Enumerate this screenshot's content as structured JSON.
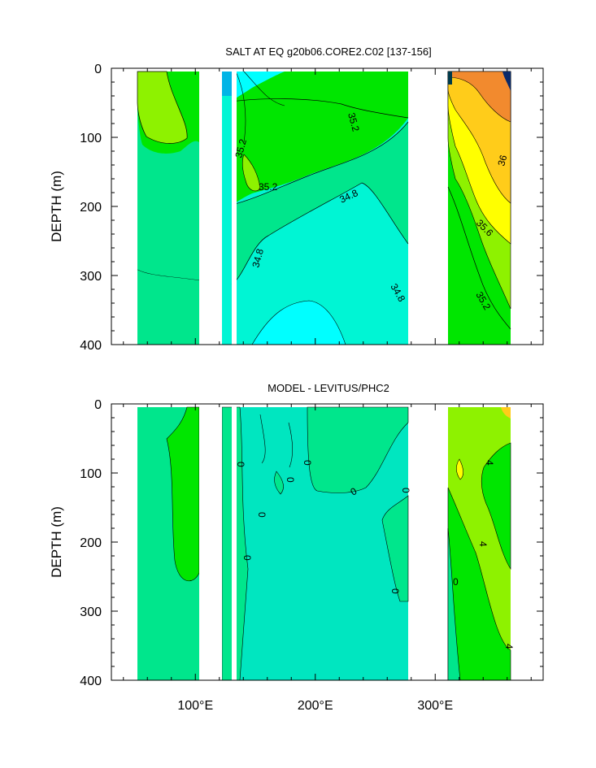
{
  "chart_data": [
    {
      "type": "contour",
      "title": "SALT AT EQ g20b06.CORE2.C02 [137-156]",
      "ylabel": "DEPTH (m)",
      "xlabel": "",
      "x_range": [
        30,
        390
      ],
      "y_range": [
        0,
        400
      ],
      "y_reversed": true,
      "y_ticks": [
        "0",
        "100",
        "200",
        "300",
        "400"
      ],
      "x_ticks": [
        "100°E",
        "200°E",
        "300°E"
      ],
      "contour_labels": [
        "35.2",
        "35.2",
        "35.2",
        "34.8",
        "34.8",
        "34.8",
        "36",
        "35.6",
        "35.2"
      ],
      "colors": {
        "fresh": "#00ffff",
        "low": "#00f5d4",
        "mid": "#00e68c",
        "mid_high": "#00e600",
        "high": "#8ef200",
        "salty": "#ffff00",
        "saltier": "#ffcc1a",
        "saltiest": "#f28a2e"
      }
    },
    {
      "type": "contour",
      "title": "MODEL - LEVITUS/PHC2",
      "ylabel": "DEPTH (m)",
      "xlabel": "",
      "x_range": [
        30,
        390
      ],
      "y_range": [
        0,
        400
      ],
      "y_reversed": true,
      "y_ticks": [
        "0",
        "100",
        "200",
        "300",
        "400"
      ],
      "x_ticks": [
        "100°E",
        "200°E",
        "300°E"
      ],
      "contour_labels": [
        "0",
        "0",
        "0",
        "0",
        "0",
        "0",
        "0",
        "0",
        "4",
        "4",
        "4"
      ],
      "colors": {
        "neg": "#00e6c0",
        "zero": "#00e68c",
        "pos": "#00e600",
        "more_pos": "#8ef200"
      }
    }
  ]
}
